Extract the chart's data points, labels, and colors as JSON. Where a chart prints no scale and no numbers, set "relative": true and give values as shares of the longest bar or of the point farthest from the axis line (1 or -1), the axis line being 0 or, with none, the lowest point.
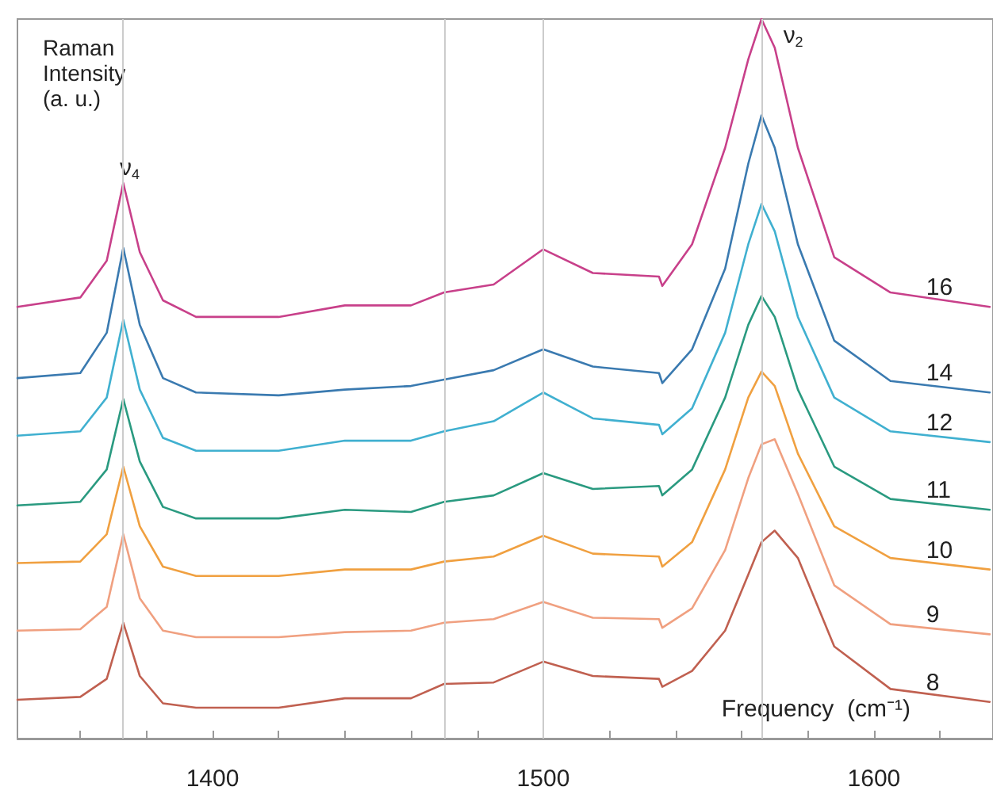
{
  "chart_data": {
    "type": "line",
    "relative": true,
    "ylabel": "Raman Intensity (a. u.)",
    "xlabel": "Frequency  (cm⁻¹)",
    "x": [
      1341,
      1360,
      1368,
      1373,
      1378,
      1385,
      1395,
      1420,
      1440,
      1460,
      1470,
      1485,
      1500,
      1515,
      1535,
      1536,
      1545,
      1555,
      1562,
      1566,
      1570,
      1577,
      1588,
      1605,
      1635
    ],
    "xlim": [
      1341,
      1636
    ],
    "xticks": [
      {
        "value": 1360,
        "label": null
      },
      {
        "value": 1380,
        "label": null
      },
      1400,
      {
        "value": 1420,
        "label": null
      },
      {
        "value": 1440,
        "label": null
      },
      {
        "value": 1460,
        "label": null
      },
      {
        "value": 1480,
        "label": null
      },
      1500,
      {
        "value": 1520,
        "label": null
      },
      {
        "value": 1540,
        "label": null
      },
      {
        "value": 1560,
        "label": null
      },
      {
        "value": 1580,
        "label": null
      },
      1600,
      {
        "value": 1620,
        "label": null
      }
    ],
    "grid": false,
    "legend": false,
    "marker": "none",
    "line_style": "solid",
    "series": [
      {
        "name": "16",
        "color": "#c8408a",
        "values": [
          0.6,
          0.613,
          0.664,
          0.772,
          0.676,
          0.609,
          0.586,
          0.586,
          0.602,
          0.602,
          0.62,
          0.631,
          0.68,
          0.647,
          0.642,
          0.629,
          0.687,
          0.821,
          0.944,
          1.0,
          0.96,
          0.821,
          0.669,
          0.62,
          0.6
        ]
      },
      {
        "name": "14",
        "color": "#3a7ab0",
        "values": [
          0.501,
          0.508,
          0.564,
          0.682,
          0.575,
          0.501,
          0.481,
          0.477,
          0.485,
          0.49,
          0.499,
          0.512,
          0.541,
          0.517,
          0.508,
          0.494,
          0.541,
          0.653,
          0.799,
          0.866,
          0.821,
          0.687,
          0.553,
          0.497,
          0.481
        ]
      },
      {
        "name": "12",
        "color": "#40b0d0",
        "values": [
          0.421,
          0.427,
          0.474,
          0.582,
          0.485,
          0.418,
          0.4,
          0.4,
          0.414,
          0.414,
          0.427,
          0.441,
          0.481,
          0.445,
          0.436,
          0.423,
          0.459,
          0.564,
          0.687,
          0.743,
          0.705,
          0.586,
          0.474,
          0.427,
          0.412
        ]
      },
      {
        "name": "11",
        "color": "#2a9a80",
        "values": [
          0.324,
          0.329,
          0.374,
          0.472,
          0.385,
          0.322,
          0.306,
          0.306,
          0.318,
          0.315,
          0.329,
          0.338,
          0.369,
          0.347,
          0.351,
          0.338,
          0.374,
          0.474,
          0.575,
          0.615,
          0.586,
          0.485,
          0.378,
          0.333,
          0.318
        ]
      },
      {
        "name": "10",
        "color": "#f0a040",
        "values": [
          0.244,
          0.246,
          0.284,
          0.378,
          0.295,
          0.239,
          0.226,
          0.226,
          0.235,
          0.235,
          0.246,
          0.253,
          0.282,
          0.257,
          0.253,
          0.239,
          0.273,
          0.374,
          0.474,
          0.51,
          0.49,
          0.396,
          0.295,
          0.251,
          0.235
        ]
      },
      {
        "name": "9",
        "color": "#f0a080",
        "values": [
          0.15,
          0.152,
          0.183,
          0.284,
          0.195,
          0.15,
          0.141,
          0.141,
          0.148,
          0.15,
          0.161,
          0.166,
          0.19,
          0.168,
          0.166,
          0.154,
          0.181,
          0.262,
          0.362,
          0.409,
          0.416,
          0.34,
          0.213,
          0.159,
          0.145
        ]
      },
      {
        "name": "8",
        "color": "#c06050",
        "values": [
          0.054,
          0.058,
          0.083,
          0.161,
          0.087,
          0.049,
          0.043,
          0.043,
          0.056,
          0.056,
          0.076,
          0.078,
          0.107,
          0.087,
          0.083,
          0.072,
          0.094,
          0.15,
          0.228,
          0.273,
          0.289,
          0.251,
          0.128,
          0.069,
          0.051
        ]
      }
    ],
    "ref_lines": [
      {
        "axis": "x",
        "value": 1373,
        "color": "#cccccc"
      },
      {
        "axis": "x",
        "value": 1470,
        "color": "#cccccc"
      },
      {
        "axis": "x",
        "value": 1500,
        "color": "#cccccc"
      },
      {
        "axis": "x",
        "value": 1566,
        "color": "#cccccc"
      }
    ],
    "annotations": [
      {
        "text": "ν$_{4}$",
        "x": 1373,
        "y": 0.772
      },
      {
        "text": "ν$_{2}$",
        "x": 1566,
        "y": 1.0
      }
    ]
  }
}
